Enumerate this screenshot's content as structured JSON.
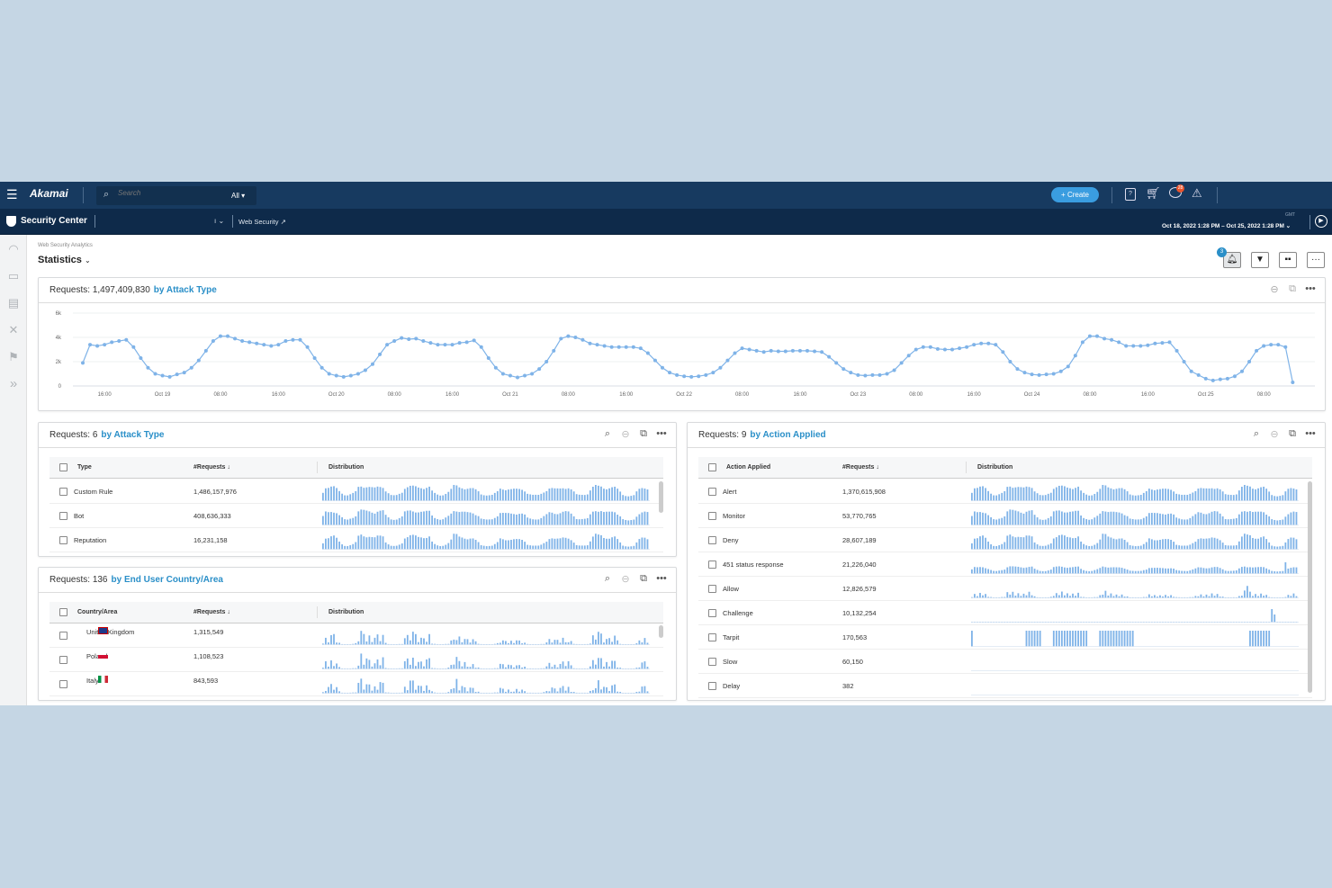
{
  "topbar": {
    "logo": "Akamai",
    "search_placeholder": "Search",
    "search_scope": "All",
    "create_label": "Create",
    "messages_badge": "28"
  },
  "subbar": {
    "app_title": "Security Center",
    "context": "Web Security",
    "timezone": "GMT",
    "date_range": "Oct 18, 2022 1:28 PM – Oct 25, 2022 1:28 PM"
  },
  "page": {
    "breadcrumb": "Web Security Analytics",
    "title": "Statistics",
    "alerts_badge": "3"
  },
  "colors": {
    "accent": "#2a8fc8",
    "series": "#7fb3e8",
    "topbar": "#173a60",
    "badge": "#e8542e"
  },
  "sidebar": [
    "gauge-icon",
    "monitor-icon",
    "report-icon",
    "tools-icon",
    "flag-icon",
    "expand-icon"
  ],
  "overview": {
    "label": "Requests:",
    "count": "1,497,409,830",
    "by": "by Attack Type"
  },
  "chart_data": {
    "type": "line",
    "x_start": "2022-10-18 13:00",
    "x_step": "1 hour",
    "xticks": [
      "16:00",
      "Oct 19",
      "08:00",
      "16:00",
      "Oct 20",
      "08:00",
      "16:00",
      "Oct 21",
      "08:00",
      "16:00",
      "Oct 22",
      "08:00",
      "16:00",
      "Oct 23",
      "08:00",
      "16:00",
      "Oct 24",
      "08:00",
      "16:00",
      "Oct 25",
      "08:00"
    ],
    "yticks": [
      "0",
      "2k",
      "4k",
      "6k"
    ],
    "ylim": [
      0,
      6000
    ],
    "grid": true,
    "values": [
      1900,
      3400,
      3300,
      3400,
      3600,
      3700,
      3800,
      3200,
      2300,
      1500,
      1000,
      850,
      750,
      950,
      1100,
      1500,
      2100,
      2900,
      3700,
      4100,
      4100,
      3900,
      3700,
      3600,
      3500,
      3400,
      3300,
      3400,
      3700,
      3800,
      3800,
      3200,
      2300,
      1500,
      1000,
      850,
      750,
      850,
      1000,
      1300,
      1800,
      2600,
      3400,
      3700,
      3950,
      3850,
      3900,
      3700,
      3550,
      3400,
      3400,
      3400,
      3550,
      3600,
      3750,
      3200,
      2300,
      1500,
      1000,
      850,
      700,
      850,
      1000,
      1400,
      2000,
      2900,
      3900,
      4100,
      4000,
      3800,
      3500,
      3400,
      3300,
      3200,
      3200,
      3200,
      3200,
      3100,
      2700,
      2100,
      1500,
      1100,
      900,
      800,
      750,
      800,
      900,
      1100,
      1500,
      2100,
      2700,
      3100,
      3000,
      2900,
      2800,
      2900,
      2850,
      2850,
      2900,
      2900,
      2900,
      2850,
      2800,
      2400,
      1900,
      1400,
      1100,
      900,
      850,
      900,
      900,
      1000,
      1300,
      1900,
      2500,
      3000,
      3200,
      3200,
      3050,
      3000,
      3000,
      3100,
      3200,
      3400,
      3500,
      3500,
      3400,
      2800,
      2000,
      1400,
      1100,
      950,
      900,
      950,
      1000,
      1200,
      1600,
      2500,
      3600,
      4100,
      4100,
      3900,
      3800,
      3600,
      3300,
      3300,
      3300,
      3350,
      3500,
      3550,
      3600,
      2900,
      2000,
      1200,
      900,
      600,
      450,
      550,
      600,
      800,
      1200,
      2000,
      2900,
      3300,
      3400,
      3400,
      3200,
      300
    ]
  },
  "attack_table": {
    "label": "Requests:",
    "count": "6",
    "by": "by Attack Type",
    "columns": [
      "Type",
      "#Requests",
      "Distribution"
    ],
    "rows": [
      {
        "name": "Custom Rule",
        "requests": "1,486,157,976"
      },
      {
        "name": "Bot",
        "requests": "408,636,333"
      },
      {
        "name": "Reputation",
        "requests": "16,231,158"
      }
    ]
  },
  "country_table": {
    "label": "Requests:",
    "count": "136",
    "by": "by End User Country/Area",
    "columns": [
      "Country/Area",
      "#Requests",
      "Distribution"
    ],
    "rows": [
      {
        "name": "United Kingdom",
        "requests": "1,315,549",
        "flag": "uk-flag-icon"
      },
      {
        "name": "Poland",
        "requests": "1,108,523",
        "flag": "poland-flag-icon"
      },
      {
        "name": "Italy",
        "requests": "843,593",
        "flag": "italy-flag-icon"
      }
    ]
  },
  "action_table": {
    "label": "Requests:",
    "count": "9",
    "by": "by Action Applied",
    "columns": [
      "Action Applied",
      "#Requests",
      "Distribution"
    ],
    "rows": [
      {
        "name": "Alert",
        "requests": "1,370,615,908"
      },
      {
        "name": "Monitor",
        "requests": "53,770,765"
      },
      {
        "name": "Deny",
        "requests": "28,607,189"
      },
      {
        "name": "451 status response",
        "requests": "21,226,040"
      },
      {
        "name": "Allow",
        "requests": "12,826,579"
      },
      {
        "name": "Challenge",
        "requests": "10,132,254"
      },
      {
        "name": "Tarpit",
        "requests": "170,563"
      },
      {
        "name": "Slow",
        "requests": "60,150"
      },
      {
        "name": "Delay",
        "requests": "382"
      }
    ]
  }
}
